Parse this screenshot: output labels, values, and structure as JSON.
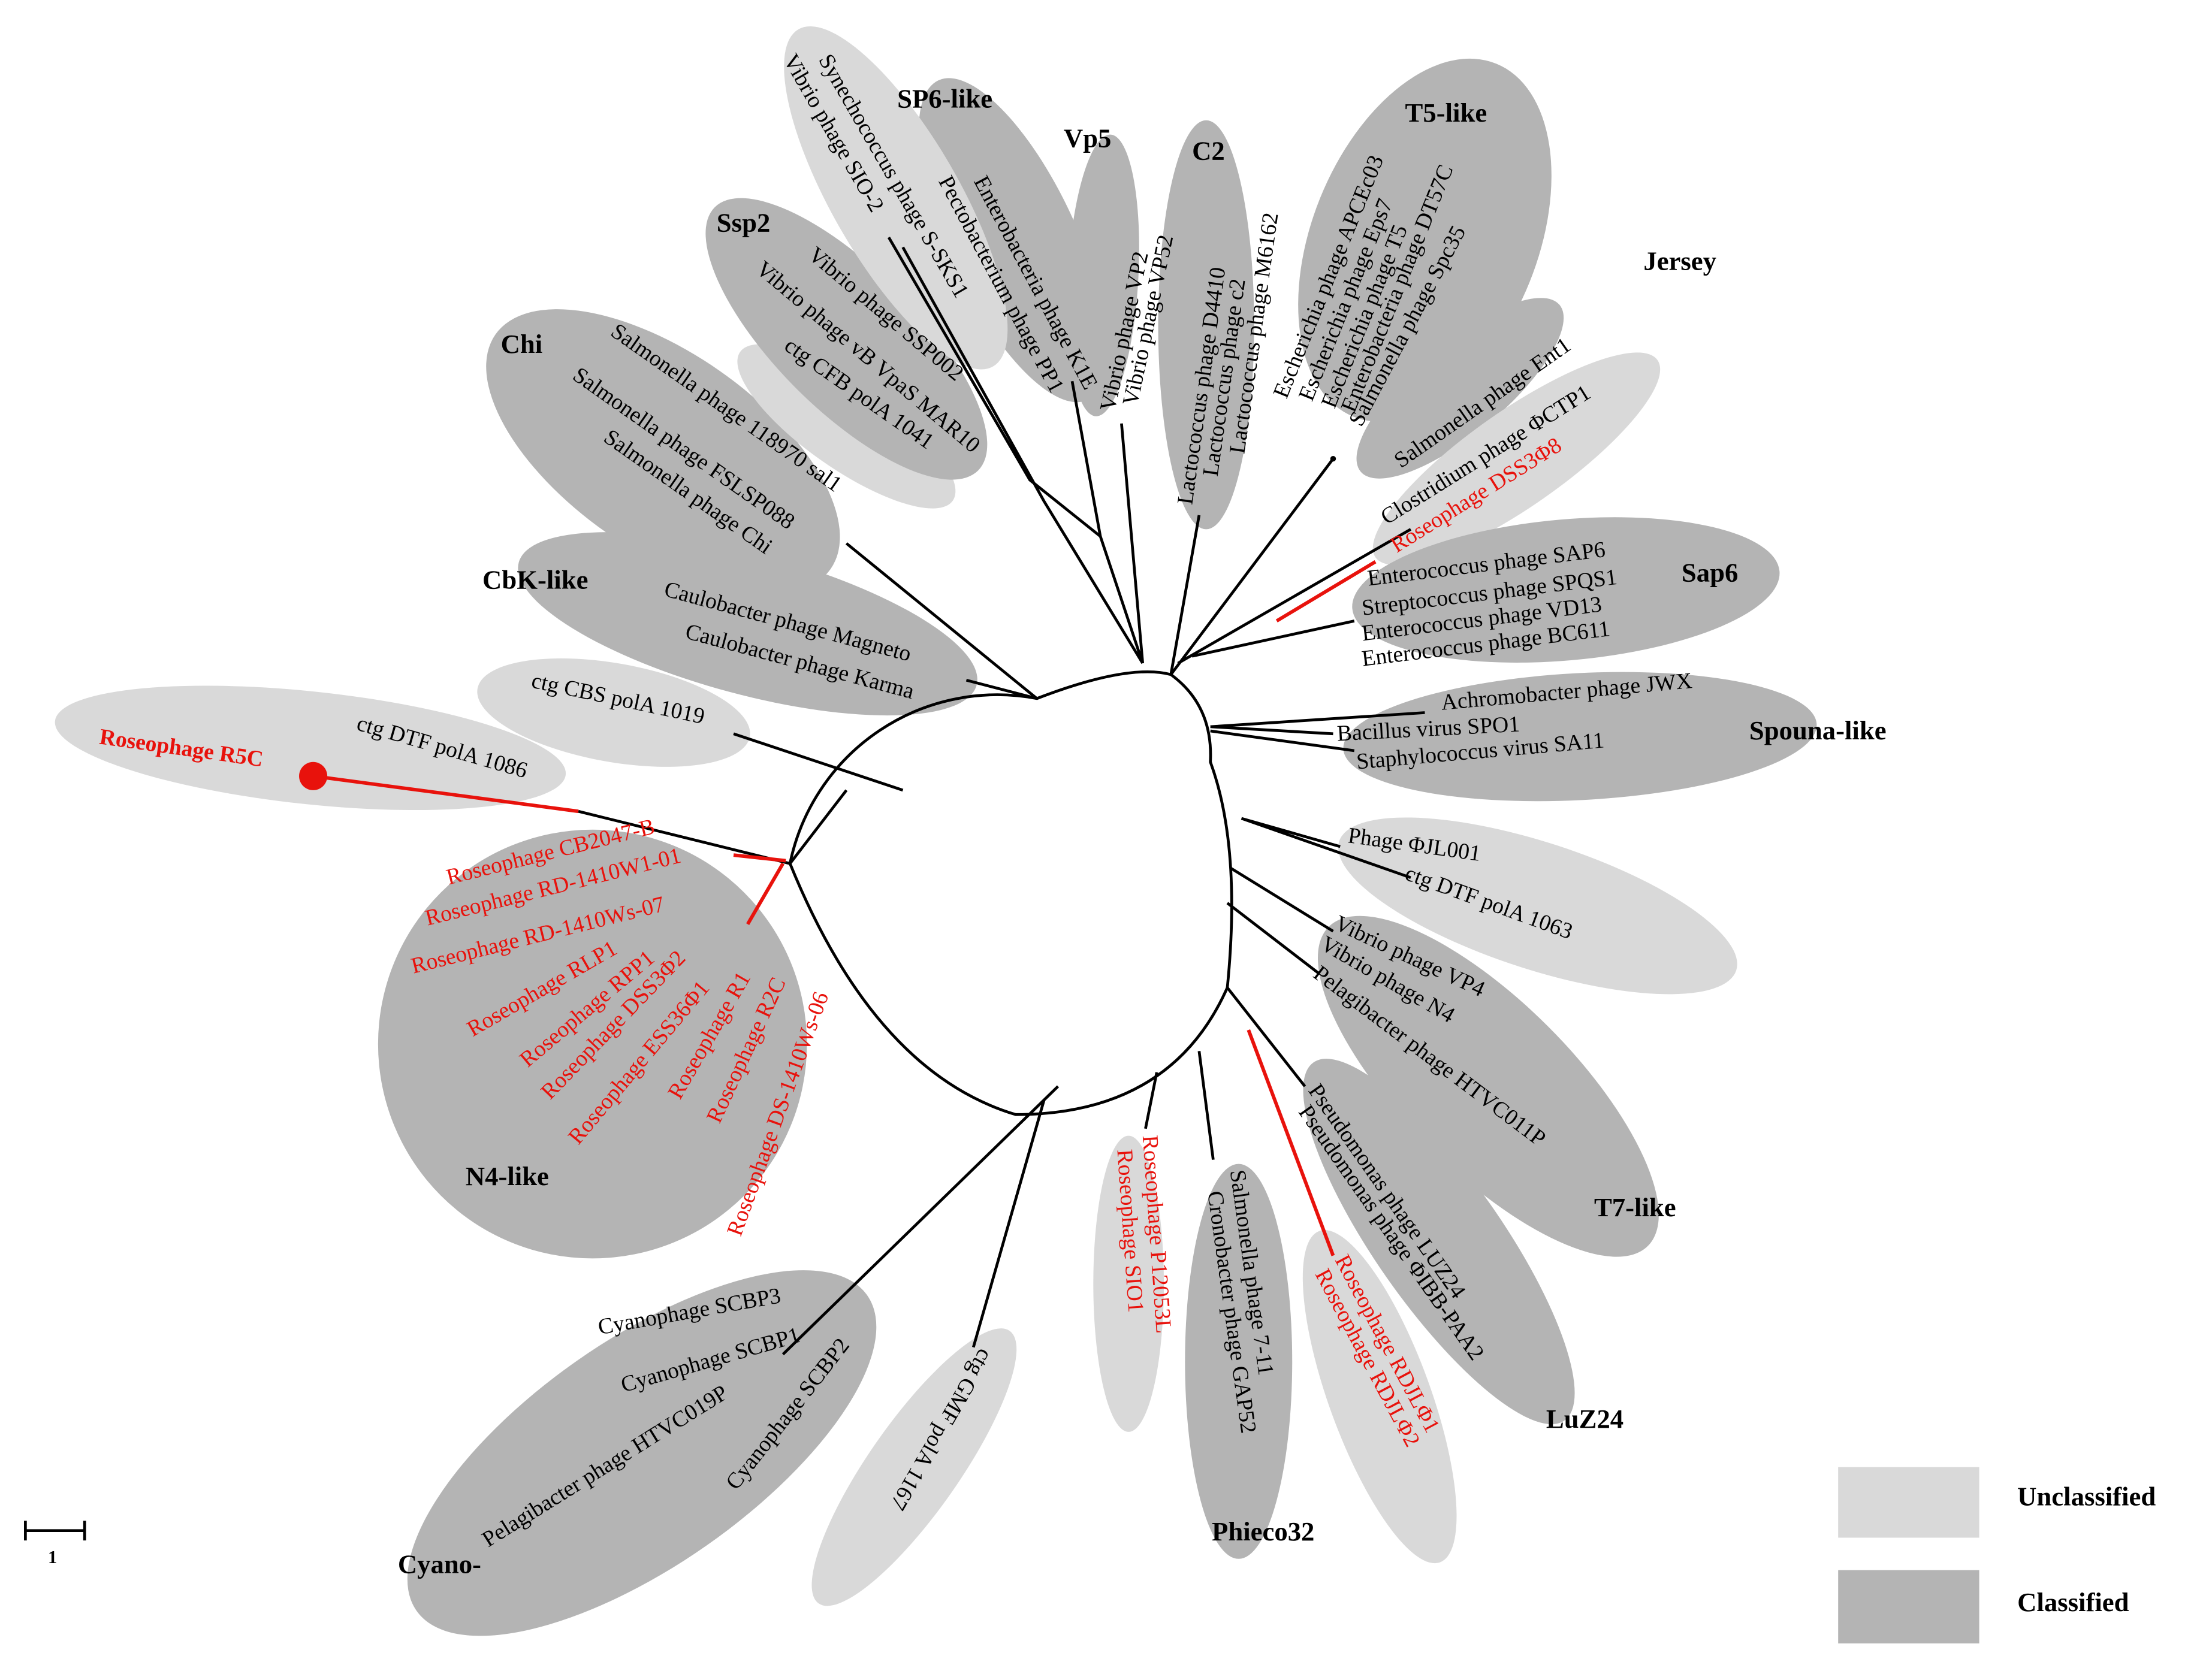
{
  "groups": [
    {
      "label": "SP6-like",
      "classified": true,
      "members": [
        "Enterobacteria phage K1E",
        "Pectobacterium phage PP1"
      ]
    },
    {
      "label": "Vp5",
      "classified": true,
      "members": [
        "Vibrio phage VP2",
        "Vibrio phage VP52"
      ]
    },
    {
      "label": "C2",
      "classified": true,
      "members": [
        "Lactococcus phage D4410",
        "Lactococcus phage c2",
        "Lactococcus phage M6162"
      ]
    },
    {
      "label": "T5-like",
      "classified": true,
      "members": [
        "Escherichia phage APCEc03",
        "Escherichia phage Eps7",
        "Escherichia phage T5",
        "Enterobacteria phage DT57C",
        "Salmonella phage Spc35"
      ]
    },
    {
      "label": "Jersey",
      "classified": true,
      "members": [
        "Salmonella phage Ent1"
      ]
    },
    {
      "classified": false,
      "members": [
        "Clostridium phage ΦCTP1",
        "Roseophage DSS3Φ8"
      ]
    },
    {
      "label": "Sap6",
      "classified": true,
      "members": [
        "Enterococcus phage SAP6",
        "Streptococcus phage SPQS1",
        "Enterococcus phage VD13",
        "Enterococcus phage BC611"
      ]
    },
    {
      "label": "Spouna-like",
      "classified": true,
      "members": [
        "Achromobacter phage JWX",
        "Bacillus virus SPO1",
        "Staphylococcus virus SA11"
      ]
    },
    {
      "classified": false,
      "members": [
        "Phage ΦJL001",
        "ctg DTF polA 1063"
      ]
    },
    {
      "label": "T7-like",
      "classified": true,
      "members": [
        "Vibrio phage VP4",
        "Vibrio phage N4",
        "Pelagibacter phage HTVC011P"
      ]
    },
    {
      "label": "LuZ24",
      "classified": true,
      "members": [
        "Pseudomonas phage LUZ24",
        "Pseudomonas phage ΦIBB-PAA2"
      ]
    },
    {
      "classified": false,
      "members": [
        "Roseophage RDJLΦ1",
        "Roseophage RDJLΦ2"
      ]
    },
    {
      "label": "Phieco32",
      "classified": true,
      "members": [
        "Salmonella phage 7-11",
        "Cronobacter phage GAP52"
      ]
    },
    {
      "classified": false,
      "members": [
        "Roseophage P12053L",
        "Roseophage SIO1"
      ]
    },
    {
      "classified": false,
      "members": [
        "ctg GMF polA 1167"
      ]
    },
    {
      "label": "Cyano-",
      "classified": true,
      "members": [
        "Cyanophage SCBP3",
        "Cyanophage SCBP1",
        "Pelagibacter phage HTVC019P",
        "Cyanophage SCBP2"
      ]
    },
    {
      "label": "N4-like",
      "classified": true,
      "members": [
        "Roseophage CB2047-B",
        "Roseophage RD-1410W1-01",
        "Roseophage RD-1410Ws-07",
        "Roseophage RLP1",
        "Roseophage RPP1",
        "Roseophage DSS3Φ2",
        "Roseophage ESS36Φ1",
        "Roseophage R1",
        "Roseophage R2C",
        "Roseophage DS-1410Ws-06"
      ]
    },
    {
      "classified": false,
      "members": [
        "Roseophage R5C",
        "ctg DTF polA 1086"
      ]
    },
    {
      "classified": false,
      "members": [
        "ctg CBS polA 1019"
      ]
    },
    {
      "label": "CbK-like",
      "classified": true,
      "members": [
        "Caulobacter phage Magneto",
        "Caulobacter phage Karma"
      ]
    },
    {
      "label": "Chi",
      "classified": true,
      "members": [
        "Salmonella phage 118970 sal1",
        "Salmonella phage FSLSP088",
        "Salmonella phage Chi"
      ]
    },
    {
      "classified": false,
      "members": [
        "ctg CFB polA 1041"
      ]
    },
    {
      "label": "Ssp2",
      "classified": true,
      "members": [
        "Vibrio phage vB VpaS MAR10",
        "Vibrio phage SSP002"
      ]
    },
    {
      "classified": false,
      "members": [
        "Vibrio phage SIO-2",
        "Synechococcus phage S-SKS1"
      ]
    }
  ],
  "legend": {
    "unclassified": "Unclassified",
    "classified": "Classified"
  },
  "scale_bar": "1"
}
